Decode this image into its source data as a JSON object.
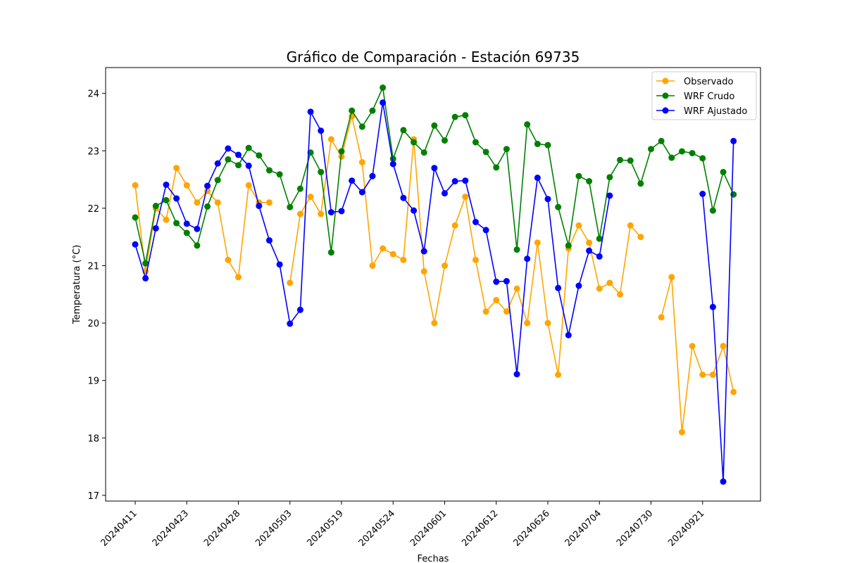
{
  "chart_data": {
    "type": "line",
    "title": "Gráfico de Comparación - Estación 69735",
    "xlabel": "Fechas",
    "ylabel": "Temperatura (°C)",
    "ylim": [
      16.9,
      24.45
    ],
    "yticks": [
      17,
      18,
      19,
      20,
      21,
      22,
      23,
      24
    ],
    "xtick_labels": [
      "20240411",
      "20240423",
      "20240428",
      "20240503",
      "20240519",
      "20240524",
      "20240601",
      "20240612",
      "20240626",
      "20240704",
      "20240730",
      "20240921"
    ],
    "grid": false,
    "legend_position": "top-right",
    "series": [
      {
        "name": "Observado",
        "color": "#ffa500",
        "values": [
          22.4,
          20.9,
          22.0,
          21.8,
          22.7,
          22.4,
          22.1,
          22.3,
          22.1,
          21.1,
          20.8,
          22.4,
          22.1,
          22.1,
          null,
          20.7,
          21.9,
          22.2,
          21.9,
          23.2,
          22.9,
          23.6,
          22.8,
          21.0,
          21.3,
          21.2,
          21.1,
          23.2,
          20.9,
          20.0,
          21.0,
          21.7,
          22.2,
          21.1,
          20.2,
          20.4,
          20.2,
          20.6,
          20.0,
          21.4,
          20.0,
          19.1,
          21.3,
          21.7,
          21.4,
          20.6,
          20.7,
          20.5,
          21.7,
          21.5,
          null,
          20.1,
          20.8,
          18.1,
          19.6,
          19.1,
          19.1,
          19.6,
          18.8
        ]
      },
      {
        "name": "WRF Crudo",
        "color": "#008000",
        "values": [
          21.84,
          21.04,
          22.04,
          22.14,
          21.74,
          21.57,
          21.35,
          22.03,
          22.49,
          22.85,
          22.75,
          23.05,
          22.92,
          22.66,
          22.59,
          22.02,
          22.34,
          22.97,
          22.63,
          21.23,
          22.99,
          23.7,
          23.42,
          23.7,
          24.1,
          22.86,
          23.36,
          23.15,
          22.97,
          23.44,
          23.18,
          23.59,
          23.62,
          23.15,
          22.98,
          22.71,
          23.03,
          21.28,
          23.46,
          23.12,
          23.1,
          22.02,
          21.35,
          22.56,
          22.47,
          21.47,
          22.54,
          22.84,
          22.83,
          22.43,
          23.03,
          23.17,
          22.88,
          22.99,
          22.96,
          22.87,
          21.96,
          22.63,
          22.24
        ]
      },
      {
        "name": "WRF Ajustado",
        "color": "#0000ff",
        "values": [
          21.37,
          20.78,
          21.65,
          22.41,
          22.17,
          21.73,
          21.64,
          22.39,
          22.78,
          23.04,
          22.93,
          22.74,
          22.04,
          21.44,
          21.02,
          19.99,
          20.23,
          23.68,
          23.35,
          21.93,
          21.95,
          22.48,
          22.28,
          22.56,
          23.84,
          22.77,
          22.18,
          21.96,
          21.25,
          22.7,
          22.26,
          22.47,
          22.48,
          21.76,
          21.62,
          20.72,
          20.73,
          19.11,
          21.12,
          22.53,
          22.16,
          20.61,
          19.79,
          20.65,
          21.26,
          21.16,
          22.22,
          null,
          null,
          null,
          null,
          null,
          null,
          null,
          null,
          22.25,
          20.28,
          17.24,
          23.17
        ]
      }
    ]
  }
}
